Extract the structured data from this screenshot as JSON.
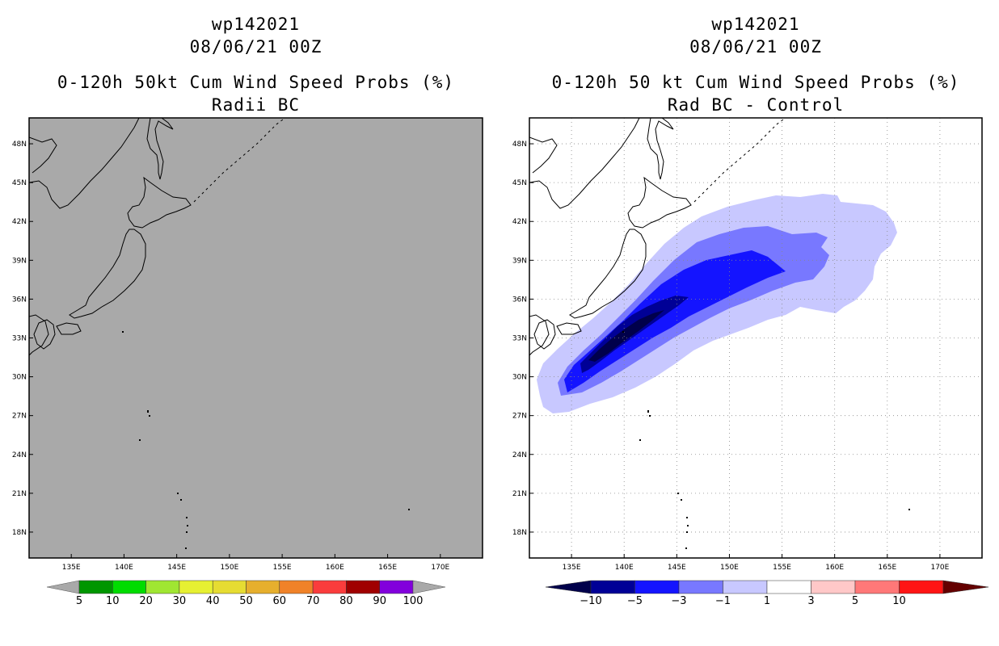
{
  "left_panel": {
    "storm_id": "wp142021",
    "datetime": "08/06/21 00Z",
    "title": "0-120h 50kt Cum Wind Speed Probs (%)",
    "subtitle": "Radii BC",
    "background_color": "#a9a9a9"
  },
  "right_panel": {
    "storm_id": "wp142021",
    "datetime": "08/06/21 00Z",
    "title": "0-120h 50 kt Cum Wind Speed Probs (%)",
    "subtitle": "Rad BC - Control",
    "background_color": "#ffffff"
  },
  "chart_data": [
    {
      "type": "heatmap",
      "title": "0-120h 50kt Cum Wind Speed Probs (%)",
      "subtitle": "Radii BC",
      "x_ticks": [
        "135E",
        "140E",
        "145E",
        "150E",
        "155E",
        "160E",
        "165E",
        "170E"
      ],
      "y_ticks": [
        "48N",
        "45N",
        "42N",
        "39N",
        "36N",
        "33N",
        "30N",
        "27N",
        "24N",
        "21N",
        "18N"
      ],
      "lon_range": [
        131,
        174
      ],
      "lat_range": [
        16,
        50
      ],
      "grid": false,
      "field": "uniform below 5% (all grey)",
      "colorbar": {
        "labels": [
          "5",
          "10",
          "20",
          "30",
          "40",
          "50",
          "60",
          "70",
          "80",
          "90",
          "100"
        ],
        "colors": [
          "#009600",
          "#00dc00",
          "#a0e632",
          "#e6f032",
          "#e6dc32",
          "#e6af2d",
          "#f08228",
          "#fa3c3c",
          "#a00000",
          "#8200dc"
        ],
        "end_color": "#a9a9a9"
      }
    },
    {
      "type": "heatmap",
      "title": "0-120h 50 kt Cum Wind Speed Probs (%)",
      "subtitle": "Rad BC - Control",
      "x_ticks": [
        "135E",
        "140E",
        "145E",
        "150E",
        "155E",
        "160E",
        "165E",
        "170E"
      ],
      "y_ticks": [
        "48N",
        "45N",
        "42N",
        "39N",
        "36N",
        "33N",
        "30N",
        "27N",
        "24N",
        "21N",
        "18N"
      ],
      "lon_range": [
        131,
        174
      ],
      "lat_range": [
        16,
        50
      ],
      "grid": true,
      "field": "negative anomaly swath oriented SW-NE from ~28N 132E to ~42N 170E",
      "colorbar": {
        "labels": [
          "-10",
          "-5",
          "-3",
          "-1",
          "1",
          "3",
          "5",
          "10"
        ],
        "colors": [
          "#000096",
          "#1414ff",
          "#7878ff",
          "#c8c8ff",
          "#ffffff",
          "#ffc8c8",
          "#ff7878",
          "#ff1414"
        ],
        "end_low": "#00004b",
        "end_high": "#640000"
      }
    }
  ]
}
